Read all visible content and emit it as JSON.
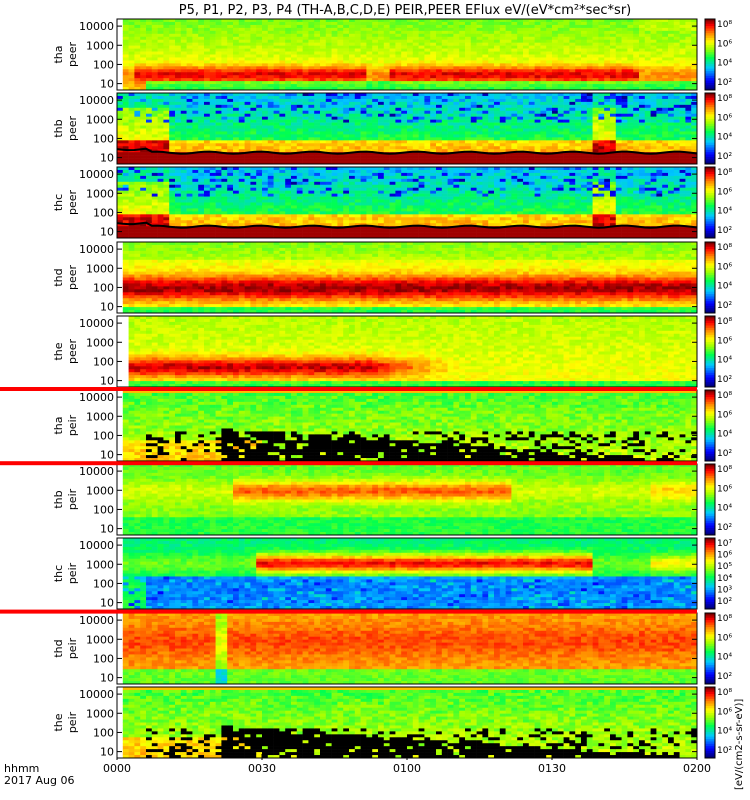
{
  "chart_data": {
    "type": "heatmap",
    "title": "P5, P1, P2, P3, P4 (TH-A,B,C,D,E) PEIR,PEER EFlux eV/(eV*cm²*sec*sr)",
    "x_axis": {
      "ticks": [
        "0000",
        "0030",
        "0100",
        "0130",
        "0200"
      ],
      "range_hhmm": [
        "0000",
        "0200"
      ],
      "label": "hhmm",
      "date": "2017 Aug 06"
    },
    "y_axis_ticks": [
      "10000",
      "1000",
      "100",
      "10"
    ],
    "y_scale": "log",
    "colorbar_unit": "[eV/(cm2-s-sr-eV)]",
    "panels": [
      {
        "probe": "tha",
        "instrument": "peer",
        "pattern": "peer_hot",
        "colorbar": {
          "max": "10⁸",
          "ticks": [
            "10⁶",
            "10⁴",
            "10²"
          ]
        }
      },
      {
        "probe": "thb",
        "instrument": "peer",
        "pattern": "peer_cold",
        "colorbar": {
          "max": "10⁸",
          "ticks": [
            "10⁶",
            "10⁴",
            "10²"
          ]
        }
      },
      {
        "probe": "thc",
        "instrument": "peer",
        "pattern": "peer_cold",
        "colorbar": {
          "max": "10⁸",
          "ticks": [
            "10⁶",
            "10⁴",
            "10²"
          ]
        }
      },
      {
        "probe": "thd",
        "instrument": "peer",
        "pattern": "peer_hot_full",
        "colorbar": {
          "max": "10⁸",
          "ticks": [
            "10⁶",
            "10⁴",
            "10²"
          ]
        }
      },
      {
        "probe": "the",
        "instrument": "peer",
        "pattern": "peer_decay",
        "colorbar": {
          "max": "10⁸",
          "ticks": [
            "10⁶",
            "10⁴",
            "10²"
          ]
        }
      },
      {
        "probe": "tha",
        "instrument": "peir",
        "pattern": "peir_sparse",
        "colorbar": {
          "max": "10⁸",
          "ticks": [
            "10⁶",
            "10⁴",
            "10²"
          ]
        }
      },
      {
        "probe": "thb",
        "instrument": "peir",
        "pattern": "peir_band",
        "colorbar": {
          "max": "10⁸",
          "ticks": [
            "10⁶",
            "10⁴",
            "10²"
          ]
        }
      },
      {
        "probe": "thc",
        "instrument": "peir",
        "pattern": "peir_band_strong",
        "colorbar": {
          "max": "10⁷",
          "ticks": [
            "10⁶",
            "10⁵",
            "10⁴",
            "10³",
            "10²"
          ]
        }
      },
      {
        "probe": "thd",
        "instrument": "peir",
        "pattern": "peir_full",
        "colorbar": {
          "max": "10⁸",
          "ticks": [
            "10⁶",
            "10⁴",
            "10²"
          ]
        }
      },
      {
        "probe": "the",
        "instrument": "peir",
        "pattern": "peir_sparse",
        "colorbar": {
          "max": "10⁸",
          "ticks": [
            "10⁶",
            "10⁴",
            "10²"
          ]
        }
      }
    ]
  },
  "colors": {
    "low": "#000080",
    "mid": "#00ff00",
    "high": "#ff0000",
    "max": "#800000",
    "gap_fill": "#ff0000",
    "potential_line": "#000000"
  }
}
